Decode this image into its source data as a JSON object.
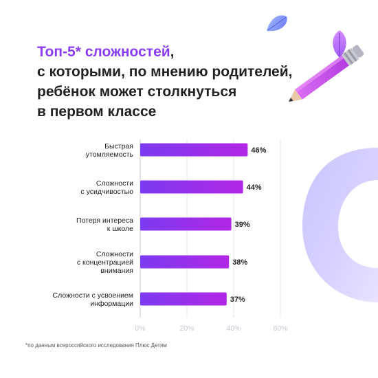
{
  "title": {
    "accent": "Топ-5* сложностей",
    "accent_tail": ",",
    "lines": [
      "с которыми, по мнению родителей,",
      "ребёнок может столкнуться",
      "в первом классе"
    ]
  },
  "chart_data": {
    "type": "bar",
    "orientation": "horizontal",
    "categories": [
      [
        "Быстрая",
        "утомляемость"
      ],
      [
        "Сложности",
        "с усидчивостью"
      ],
      [
        "Потеря интереса",
        "к школе"
      ],
      [
        "Сложности",
        "с концентрацией",
        "внимания"
      ],
      [
        "Сложности с усвоением",
        "информации"
      ]
    ],
    "values": [
      46,
      44,
      39,
      38,
      37
    ],
    "value_labels": [
      "46%",
      "44%",
      "39%",
      "38%",
      "37%"
    ],
    "xlim": [
      0,
      60
    ],
    "xticks": [
      0,
      20,
      40,
      60
    ],
    "xtick_labels": [
      "0%",
      "20%",
      "40%",
      "60%"
    ],
    "grid": "vertical",
    "colors": {
      "bar_start": "#7b3bf0",
      "bar_end": "#b226e6",
      "accent": "#8a3cf2",
      "grid": "#e4e4ec",
      "tick": "#c6c6d2"
    }
  },
  "footnote": "*по данным всероссийского исследования Плюс Детям",
  "decor": {
    "icons": [
      "leaf-icon",
      "leaf-icon",
      "pencil-icon"
    ]
  }
}
